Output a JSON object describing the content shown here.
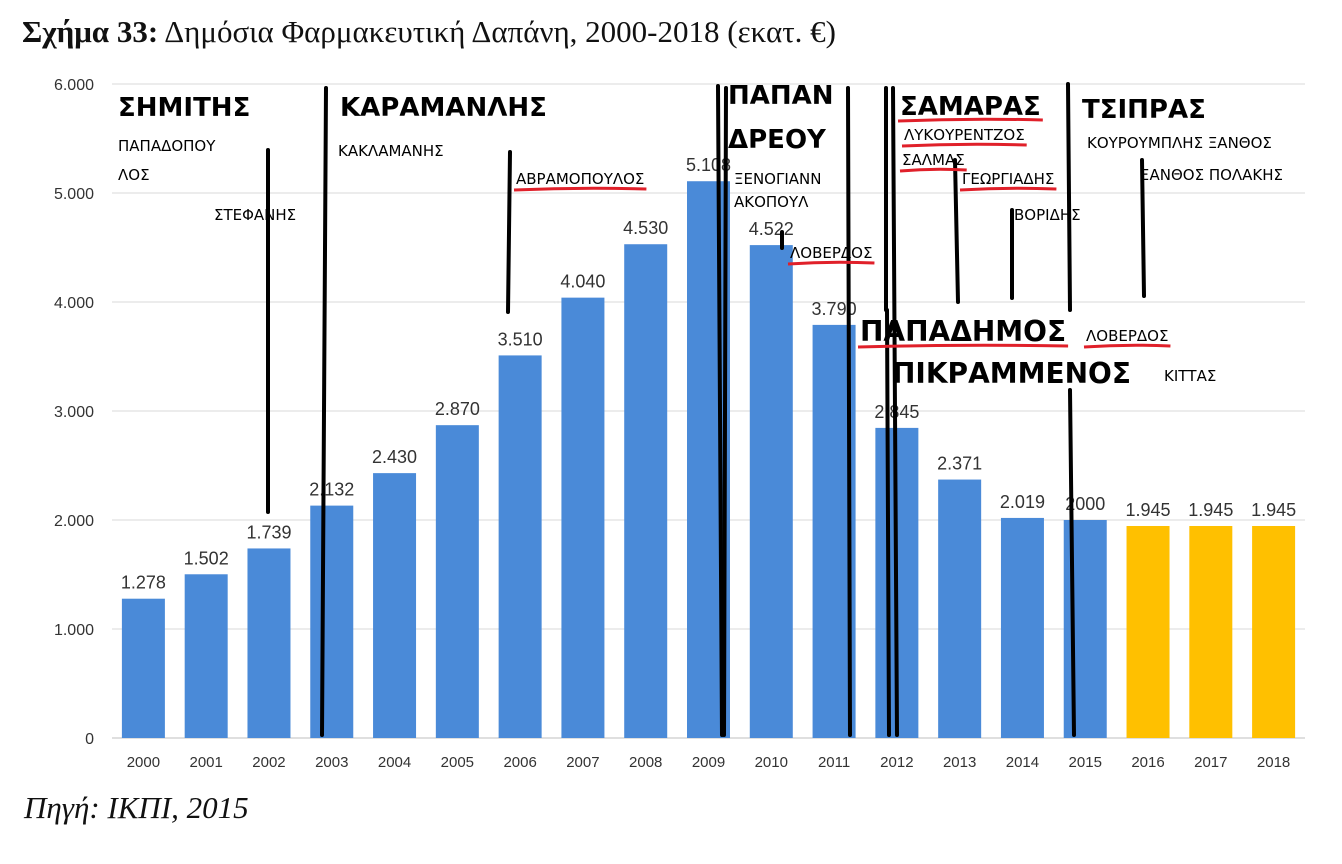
{
  "title": {
    "prefix": "Σχήμα 33:",
    "text": "Δημόσια Φαρμακευτική Δαπάνη, 2000-2018 (εκατ. €)"
  },
  "source": "Πηγή: ΙΚΠΙ, 2015",
  "colors": {
    "actual": "#4a8ad8",
    "projected": "#ffc000",
    "grid": "#d9d9d9",
    "annotation_line": "#000000",
    "underline": "#e0202a"
  },
  "chart_data": {
    "type": "bar",
    "categories": [
      "2000",
      "2001",
      "2002",
      "2003",
      "2004",
      "2005",
      "2006",
      "2007",
      "2008",
      "2009",
      "2010",
      "2011",
      "2012",
      "2013",
      "2014",
      "2015",
      "2016",
      "2017",
      "2018"
    ],
    "values": [
      1278,
      1502,
      1739,
      2132,
      2430,
      2870,
      3510,
      4040,
      4530,
      5108,
      4522,
      3790,
      2845,
      2371,
      2019,
      2000,
      1945,
      1945,
      1945
    ],
    "value_labels": [
      "1.278",
      "1.502",
      "1.739",
      "2.132",
      "2.430",
      "2.870",
      "3.510",
      "4.040",
      "4.530",
      "5.108",
      "4.522",
      "3.790",
      "2.845",
      "2.371",
      "2.019",
      "2000",
      "1.945",
      "1.945",
      "1.945"
    ],
    "projected_from_index": 16,
    "ylim": [
      0,
      6000
    ],
    "yticks": [
      0,
      1000,
      2000,
      3000,
      4000,
      5000,
      6000
    ],
    "ytick_labels": [
      "0",
      "1.000",
      "2.000",
      "3.000",
      "4.000",
      "5.000",
      "6.000"
    ],
    "grid": true,
    "title": "Δημόσια Φαρμακευτική Δαπάνη, 2000-2018 (εκατ. €)",
    "xlabel": "",
    "ylabel": ""
  },
  "annotations": {
    "labels": [
      {
        "id": "simitis",
        "text": "ΣΗΜΙΤΗΣ",
        "size": "big",
        "underline": false
      },
      {
        "id": "papadopoulos1",
        "text": "ΠΑΠΑΔΟΠΟΥ",
        "size": "small",
        "underline": false
      },
      {
        "id": "papadopoulos2",
        "text": "ΛΟΣ",
        "size": "small",
        "underline": false
      },
      {
        "id": "stefanis",
        "text": "ΣΤΕΦΑΝΗΣ",
        "size": "small",
        "underline": false
      },
      {
        "id": "karamanlis",
        "text": "ΚΑΡΑΜΑΝΛΗΣ",
        "size": "big",
        "underline": false
      },
      {
        "id": "kaklamanis",
        "text": "ΚΑΚΛΑΜΑΝΗΣ",
        "size": "small",
        "underline": false
      },
      {
        "id": "avramopoulos",
        "text": "ΑΒΡΑΜΟΠΟΥΛΟΣ",
        "size": "small",
        "underline": true
      },
      {
        "id": "papandreou1",
        "text": "ΠΑΠΑΝ",
        "size": "big",
        "underline": false
      },
      {
        "id": "papandreou2",
        "text": "ΔΡΕΟΥ",
        "size": "big",
        "underline": false
      },
      {
        "id": "xenogiannak1",
        "text": "ΞΕΝΟΓΙΑΝΝ",
        "size": "small",
        "underline": false
      },
      {
        "id": "xenogiannak2",
        "text": "ΑΚΟΠΟΥΛ",
        "size": "small",
        "underline": false
      },
      {
        "id": "loverdos1",
        "text": "ΛΟΒΕΡΔΟΣ",
        "size": "small",
        "underline": true
      },
      {
        "id": "samaras",
        "text": "ΣΑΜΑΡΑΣ",
        "size": "big",
        "underline": true
      },
      {
        "id": "lykourentzos",
        "text": "ΛΥΚΟΥΡΕΝΤΖΟΣ",
        "size": "small",
        "underline": true
      },
      {
        "id": "salmas",
        "text": "ΣΑΛΜΑΣ",
        "size": "small",
        "underline": true
      },
      {
        "id": "georgiadis",
        "text": "ΓΕΩΡΓΙΑΔΗΣ",
        "size": "small",
        "underline": true
      },
      {
        "id": "voridis",
        "text": "ΒΟΡΙΔΗΣ",
        "size": "small",
        "underline": false
      },
      {
        "id": "tsipras",
        "text": "ΤΣΙΠΡΑΣ",
        "size": "big",
        "underline": false
      },
      {
        "id": "kourouplis",
        "text": "ΚΟΥΡΟΥΜΠΛΗΣ  ΞΑΝΘΟΣ",
        "size": "small",
        "underline": false
      },
      {
        "id": "xanthos",
        "text": "ΞΑΝΘΟΣ ΠΟΛΑΚΗΣ",
        "size": "small",
        "underline": false
      },
      {
        "id": "papadimos",
        "text": "ΠΑΠΑΔΗΜΟΣ",
        "size": "mid",
        "underline": true
      },
      {
        "id": "loverdos2",
        "text": "ΛΟΒΕΡΔΟΣ",
        "size": "small",
        "underline": true
      },
      {
        "id": "pikrammenos",
        "text": "ΠΙΚΡΑΜΜΕΝΟΣ",
        "size": "mid",
        "underline": false
      },
      {
        "id": "kittas",
        "text": "ΚΙΤΤΑΣ",
        "size": "small",
        "underline": false
      }
    ]
  }
}
